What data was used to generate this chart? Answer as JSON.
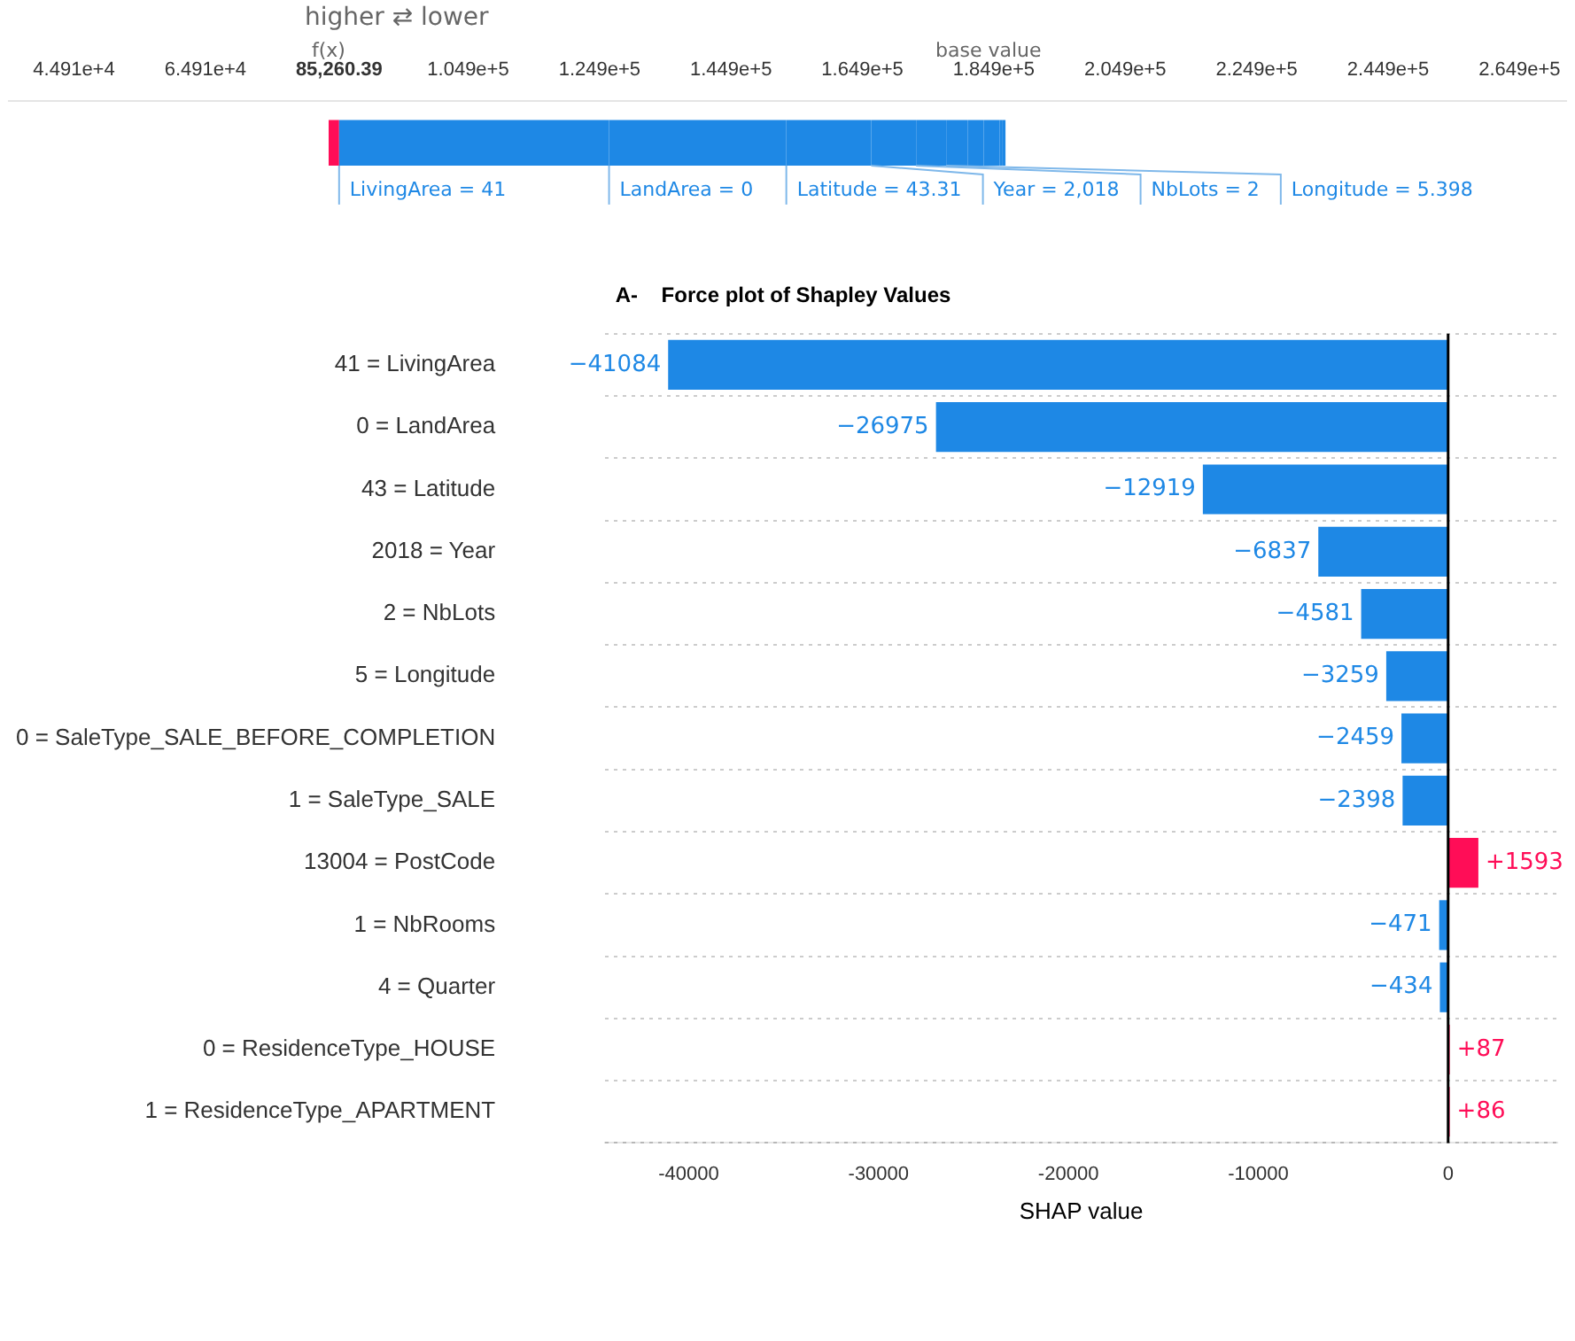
{
  "chart_data": [
    {
      "type": "bar",
      "orientation": "horizontal",
      "categories": [
        null
      ],
      "legend": false,
      "tick_labels": "x",
      "xlim": [
        35000,
        272000
      ],
      "xticks": [
        {
          "value": 44910,
          "label": "4.491e+4"
        },
        {
          "value": 64910,
          "label": "6.491e+4"
        },
        {
          "value": 85260.39,
          "label": "85,260.39"
        },
        {
          "value": 104900,
          "label": "1.049e+5"
        },
        {
          "value": 124900,
          "label": "1.249e+5"
        },
        {
          "value": 144900,
          "label": "1.449e+5"
        },
        {
          "value": 164900,
          "label": "1.649e+5"
        },
        {
          "value": 184900,
          "label": "1.849e+5"
        },
        {
          "value": 204900,
          "label": "2.049e+5"
        },
        {
          "value": 224900,
          "label": "2.249e+5"
        },
        {
          "value": 244900,
          "label": "2.449e+5"
        },
        {
          "value": 264900,
          "label": "2.649e+5"
        }
      ],
      "annotations": [
        "higher ⇄ lower",
        "f(x)",
        "base value"
      ],
      "series": [
        {
          "name": "LivingArea = 41",
          "color": "#1e88e5",
          "values": [
            -41084
          ],
          "base": [
            126344
          ]
        },
        {
          "name": "LandArea = 0",
          "color": "#1e88e5",
          "values": [
            -26975
          ],
          "base": [
            153319
          ]
        },
        {
          "name": "Latitude = 43.31",
          "color": "#1e88e5",
          "values": [
            -12919
          ],
          "base": [
            166238
          ]
        },
        {
          "name": "Year = 2,018",
          "color": "#1e88e5",
          "values": [
            -6837
          ],
          "base": [
            173075
          ]
        },
        {
          "name": "NbLots = 2",
          "color": "#1e88e5",
          "values": [
            -4581
          ],
          "base": [
            177656
          ]
        },
        {
          "name": "Longitude = 5.398",
          "color": "#1e88e5",
          "values": [
            -3259
          ],
          "base": [
            180915
          ]
        },
        {
          "color": "#1e88e5",
          "values": [
            -2459
          ],
          "base": [
            183374
          ]
        },
        {
          "color": "#1e88e5",
          "values": [
            -2398
          ],
          "base": [
            185772
          ]
        },
        {
          "color": "#1e88e5",
          "values": [
            -471
          ],
          "base": [
            186243
          ]
        },
        {
          "color": "#1e88e5",
          "values": [
            -434
          ],
          "base": [
            186677
          ]
        },
        {
          "color": "#ff0d57",
          "values": [
            1593
          ],
          "base": [
            83667
          ]
        }
      ]
    },
    {
      "type": "bar",
      "orientation": "horizontal",
      "title": "A-    Force plot of Shapley Values",
      "xlabel": "SHAP value",
      "legend": false,
      "grid": "y",
      "categories": [
        "41 = LivingArea",
        "0 = LandArea",
        "43 = Latitude",
        "2018 = Year",
        "2 = NbLots",
        "5 = Longitude",
        "0 = SaleType_SALE_BEFORE_COMPLETION",
        "1 = SaleType_SALE",
        "13004 = PostCode",
        "1 = NbRooms",
        "4 = Quarter",
        "0 = ResidenceType_HOUSE",
        "1 = ResidenceType_APARTMENT"
      ],
      "values": [
        -41084,
        -26975,
        -12919,
        -6837,
        -4581,
        -3259,
        -2459,
        -2398,
        1593,
        -471,
        -434,
        87,
        86
      ],
      "colors": [
        "#1e88e5",
        "#1e88e5",
        "#1e88e5",
        "#1e88e5",
        "#1e88e5",
        "#1e88e5",
        "#1e88e5",
        "#1e88e5",
        "#ff0d57",
        "#1e88e5",
        "#1e88e5",
        "#ff0d57",
        "#ff0d57"
      ],
      "value_labels": [
        "−41084",
        "−26975",
        "−12919",
        "−6837",
        "−4581",
        "−3259",
        "−2459",
        "−2398",
        "+1593",
        "−471",
        "−434",
        "+87",
        "+86"
      ],
      "xlim": [
        -44400,
        5750
      ],
      "xticks": [
        -40000,
        -30000,
        -20000,
        -10000,
        0
      ],
      "ref_lines": [
        {
          "axis": "x",
          "value": 0,
          "color": "#000000"
        }
      ]
    }
  ]
}
